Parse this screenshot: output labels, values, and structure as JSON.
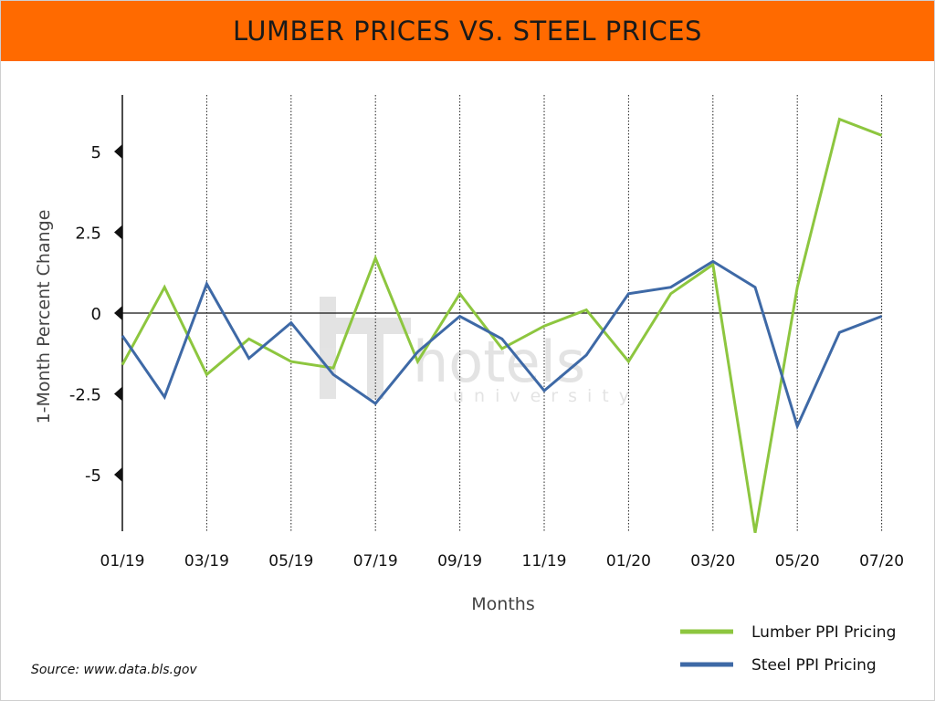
{
  "header": {
    "title": "LUMBER PRICES VS. STEEL PRICES"
  },
  "footer": {
    "source": "Source: www.data.bls.gov"
  },
  "watermark": {
    "brand": "hotels",
    "sub": "university"
  },
  "colors": {
    "title_bg": "#ff6a00",
    "lumber": "#8dc63f",
    "steel": "#3e69a6"
  },
  "chart_data": {
    "type": "line",
    "title": "LUMBER PRICES VS. STEEL PRICES",
    "xlabel": "Months",
    "ylabel": "1-Month Percent Change",
    "ylim": [
      -6.8,
      6.8
    ],
    "yticks": [
      5,
      2.5,
      0,
      -2.5,
      -5
    ],
    "x": [
      "01/19",
      "02/19",
      "03/19",
      "04/19",
      "05/19",
      "06/19",
      "07/19",
      "08/19",
      "09/19",
      "10/19",
      "11/19",
      "12/19",
      "01/20",
      "02/20",
      "03/20",
      "04/20",
      "05/20",
      "06/20",
      "07/20"
    ],
    "xtick_labels": [
      "01/19",
      "03/19",
      "05/19",
      "07/19",
      "09/19",
      "11/19",
      "01/20",
      "03/20",
      "05/20",
      "07/20"
    ],
    "grid": "vertical dotted at labeled months",
    "legend_position": "bottom-right",
    "series": [
      {
        "name": "Lumber PPI Pricing",
        "color": "#8dc63f",
        "values": [
          -1.6,
          0.8,
          -1.9,
          -0.8,
          -1.5,
          -1.7,
          1.7,
          -1.5,
          0.6,
          -1.1,
          -0.4,
          0.1,
          -1.5,
          0.6,
          1.5,
          -6.8,
          0.8,
          6.0,
          5.5
        ]
      },
      {
        "name": "Steel PPI Pricing",
        "color": "#3e69a6",
        "values": [
          -0.7,
          -2.6,
          0.9,
          -1.4,
          -0.3,
          -1.9,
          -2.8,
          -1.2,
          -0.1,
          -0.8,
          -2.4,
          -1.3,
          0.6,
          0.8,
          1.6,
          0.8,
          -3.5,
          -0.6,
          -0.1
        ]
      }
    ]
  }
}
